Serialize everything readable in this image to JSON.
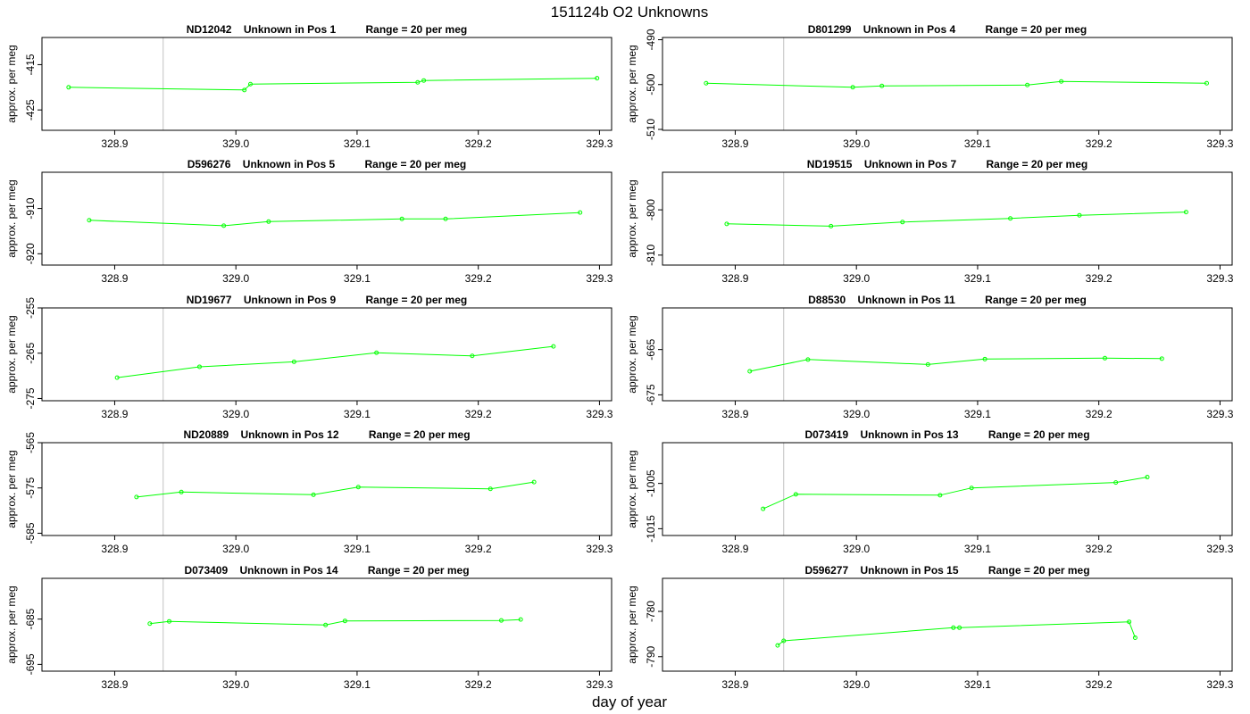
{
  "figure": {
    "title": "151124b  O2 Unknowns",
    "xlabel": "day of year",
    "ylabel": "approx. per meg",
    "line_color": "#00ff00",
    "frame_color": "#000000",
    "marker_color": "#c0c0c0"
  },
  "chart_data": [
    {
      "type": "line",
      "id": "ND12042",
      "title": "ND12042    Unknown in Pos 1          Range = 20 per meg",
      "xlim": [
        328.84,
        329.31
      ],
      "ylim": [
        -429.5,
        -409
      ],
      "yticks": [
        -415,
        -425
      ],
      "ytick_labels": [
        "-415",
        "-425"
      ],
      "xticks": [
        328.9,
        329.0,
        329.1,
        329.2,
        329.3
      ],
      "xtick_labels": [
        "328.9",
        "329.0",
        "329.1",
        "329.2",
        "329.3"
      ],
      "marker_x": 328.94,
      "x": [
        328.862,
        329.007,
        329.012,
        329.15,
        329.155,
        329.298
      ],
      "y": [
        -420.0,
        -420.6,
        -419.3,
        -418.9,
        -418.5,
        -418.0
      ]
    },
    {
      "type": "line",
      "id": "D801299",
      "title": "D801299    Unknown in Pos 4          Range = 20 per meg",
      "xlim": [
        328.84,
        329.31
      ],
      "ylim": [
        -510.2,
        -489.5
      ],
      "yticks": [
        -490,
        -500,
        -510
      ],
      "ytick_labels": [
        "-490",
        "-500",
        "-510"
      ],
      "xticks": [
        328.9,
        329.0,
        329.1,
        329.2,
        329.3
      ],
      "xtick_labels": [
        "328.9",
        "329.0",
        "329.1",
        "329.2",
        "329.3"
      ],
      "marker_x": 328.94,
      "x": [
        328.876,
        328.997,
        329.021,
        329.141,
        329.169,
        329.289
      ],
      "y": [
        -499.7,
        -500.6,
        -500.3,
        -500.1,
        -499.3,
        -499.7
      ]
    },
    {
      "type": "line",
      "id": "D596276",
      "title": "D596276    Unknown in Pos 5          Range = 20 per meg",
      "xlim": [
        328.84,
        329.31
      ],
      "ylim": [
        -922.5,
        -902
      ],
      "yticks": [
        -910,
        -920
      ],
      "ytick_labels": [
        "-910",
        "-920"
      ],
      "xticks": [
        328.9,
        329.0,
        329.1,
        329.2,
        329.3
      ],
      "xtick_labels": [
        "328.9",
        "329.0",
        "329.1",
        "329.2",
        "329.3"
      ],
      "marker_x": 328.94,
      "x": [
        328.879,
        328.99,
        329.027,
        329.137,
        329.173,
        329.284
      ],
      "y": [
        -912.6,
        -913.8,
        -912.9,
        -912.3,
        -912.3,
        -910.9
      ]
    },
    {
      "type": "line",
      "id": "ND19515",
      "title": "ND19515    Unknown in Pos 7          Range = 20 per meg",
      "xlim": [
        328.84,
        329.31
      ],
      "ylim": [
        -812.2,
        -791.7
      ],
      "yticks": [
        -800,
        -810
      ],
      "ytick_labels": [
        "-800",
        "-810"
      ],
      "xticks": [
        328.9,
        329.0,
        329.1,
        329.2,
        329.3
      ],
      "xtick_labels": [
        "328.9",
        "329.0",
        "329.1",
        "329.2",
        "329.3"
      ],
      "marker_x": 328.94,
      "x": [
        328.893,
        328.979,
        329.038,
        329.127,
        329.184,
        329.272
      ],
      "y": [
        -803.1,
        -803.6,
        -802.7,
        -801.9,
        -801.2,
        -800.5
      ]
    },
    {
      "type": "line",
      "id": "ND19677",
      "title": "ND19677    Unknown in Pos 9          Range = 20 per meg",
      "xlim": [
        328.84,
        329.31
      ],
      "ylim": [
        -275.5,
        -255
      ],
      "yticks": [
        -255,
        -265,
        -275
      ],
      "ytick_labels": [
        "-255",
        "-265",
        "-275"
      ],
      "xticks": [
        328.9,
        329.0,
        329.1,
        329.2,
        329.3
      ],
      "xtick_labels": [
        "328.9",
        "329.0",
        "329.1",
        "329.2",
        "329.3"
      ],
      "marker_x": 328.94,
      "x": [
        328.902,
        328.97,
        329.048,
        329.116,
        329.195,
        329.262
      ],
      "y": [
        -270.4,
        -268.0,
        -266.9,
        -264.9,
        -265.6,
        -263.5
      ]
    },
    {
      "type": "line",
      "id": "D88530",
      "title": "D88530    Unknown in Pos 11          Range = 20 per meg",
      "xlim": [
        328.84,
        329.31
      ],
      "ylim": [
        -676.3,
        -655.8
      ],
      "yticks": [
        -665,
        -675
      ],
      "ytick_labels": [
        "-665",
        "-675"
      ],
      "xticks": [
        328.9,
        329.0,
        329.1,
        329.2,
        329.3
      ],
      "xtick_labels": [
        "328.9",
        "329.0",
        "329.1",
        "329.2",
        "329.3"
      ],
      "marker_x": 328.94,
      "x": [
        328.912,
        328.96,
        329.059,
        329.106,
        329.205,
        329.252
      ],
      "y": [
        -669.8,
        -667.2,
        -668.3,
        -667.1,
        -666.9,
        -667.0
      ]
    },
    {
      "type": "line",
      "id": "ND20889",
      "title": "ND20889    Unknown in Pos 12          Range = 20 per meg",
      "xlim": [
        328.84,
        329.31
      ],
      "ylim": [
        -585.5,
        -565
      ],
      "yticks": [
        -565,
        -575,
        -585
      ],
      "ytick_labels": [
        "-565",
        "-575",
        "-585"
      ],
      "xticks": [
        328.9,
        329.0,
        329.1,
        329.2,
        329.3
      ],
      "xtick_labels": [
        "328.9",
        "329.0",
        "329.1",
        "329.2",
        "329.3"
      ],
      "marker_x": 328.94,
      "x": [
        328.918,
        328.955,
        329.064,
        329.101,
        329.21,
        329.246
      ],
      "y": [
        -577.0,
        -575.9,
        -576.5,
        -574.8,
        -575.2,
        -573.7
      ]
    },
    {
      "type": "line",
      "id": "D073419",
      "title": "D073419    Unknown in Pos 13          Range = 20 per meg",
      "xlim": [
        328.84,
        329.31
      ],
      "ylim": [
        -1016.5,
        -996
      ],
      "yticks": [
        -1005,
        -1015
      ],
      "ytick_labels": [
        "-1005",
        "-1015"
      ],
      "xticks": [
        328.9,
        329.0,
        329.1,
        329.2,
        329.3
      ],
      "xtick_labels": [
        "328.9",
        "329.0",
        "329.1",
        "329.2",
        "329.3"
      ],
      "marker_x": 328.94,
      "x": [
        328.923,
        328.95,
        329.069,
        329.095,
        329.214,
        329.24
      ],
      "y": [
        -1010.6,
        -1007.4,
        -1007.6,
        -1006.0,
        -1004.8,
        -1003.6
      ]
    },
    {
      "type": "line",
      "id": "D073409",
      "title": "D073409    Unknown in Pos 14          Range = 20 per meg",
      "xlim": [
        328.84,
        329.31
      ],
      "ylim": [
        -696.5,
        -676
      ],
      "yticks": [
        -685,
        -695
      ],
      "ytick_labels": [
        "-685",
        "-695"
      ],
      "xticks": [
        328.9,
        329.0,
        329.1,
        329.2,
        329.3
      ],
      "xtick_labels": [
        "328.9",
        "329.0",
        "329.1",
        "329.2",
        "329.3"
      ],
      "marker_x": 328.94,
      "x": [
        328.929,
        328.945,
        329.074,
        329.09,
        329.219,
        329.235
      ],
      "y": [
        -686.0,
        -685.5,
        -686.3,
        -685.4,
        -685.3,
        -685.1
      ]
    },
    {
      "type": "line",
      "id": "D596277",
      "title": "D596277    Unknown in Pos 15          Range = 20 per meg",
      "xlim": [
        328.84,
        329.31
      ],
      "ylim": [
        -793.2,
        -772.7
      ],
      "yticks": [
        -780,
        -790
      ],
      "ytick_labels": [
        "-780",
        "-790"
      ],
      "xticks": [
        328.9,
        329.0,
        329.1,
        329.2,
        329.3
      ],
      "xtick_labels": [
        "328.9",
        "329.0",
        "329.1",
        "329.2",
        "329.3"
      ],
      "marker_x": 328.94,
      "x": [
        328.935,
        328.94,
        329.08,
        329.085,
        329.225,
        329.23
      ],
      "y": [
        -787.5,
        -786.5,
        -783.6,
        -783.6,
        -782.3,
        -785.8
      ]
    }
  ]
}
